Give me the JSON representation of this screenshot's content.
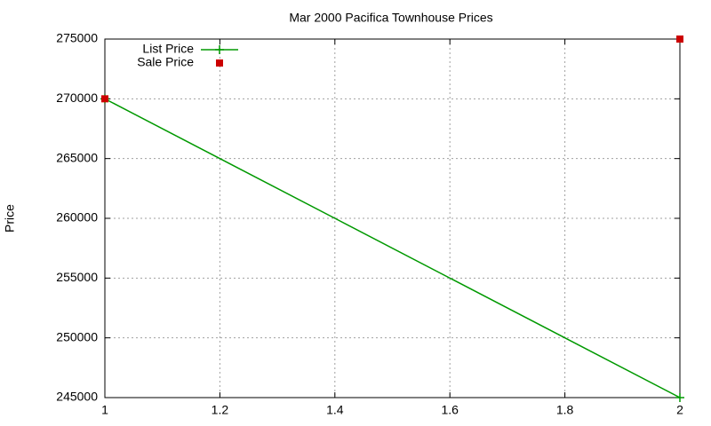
{
  "chart_data": {
    "type": "line",
    "title": "Mar 2000 Pacifica Townhouse Prices",
    "ylabel": "Price",
    "x": [
      1,
      2
    ],
    "series": [
      {
        "name": "List Price",
        "color": "#009900",
        "style": "linespoints",
        "values": [
          270000,
          245000
        ]
      },
      {
        "name": "Sale Price",
        "color": "#cc0000",
        "style": "points",
        "values": [
          270000,
          275000
        ]
      }
    ],
    "xlim": [
      1,
      2
    ],
    "xticks": [
      1,
      1.2,
      1.4,
      1.6,
      1.8,
      2
    ],
    "ylim": [
      245000,
      275000
    ],
    "yticks": [
      245000,
      250000,
      255000,
      260000,
      265000,
      270000,
      275000
    ],
    "grid": true,
    "legend": "top-left"
  }
}
